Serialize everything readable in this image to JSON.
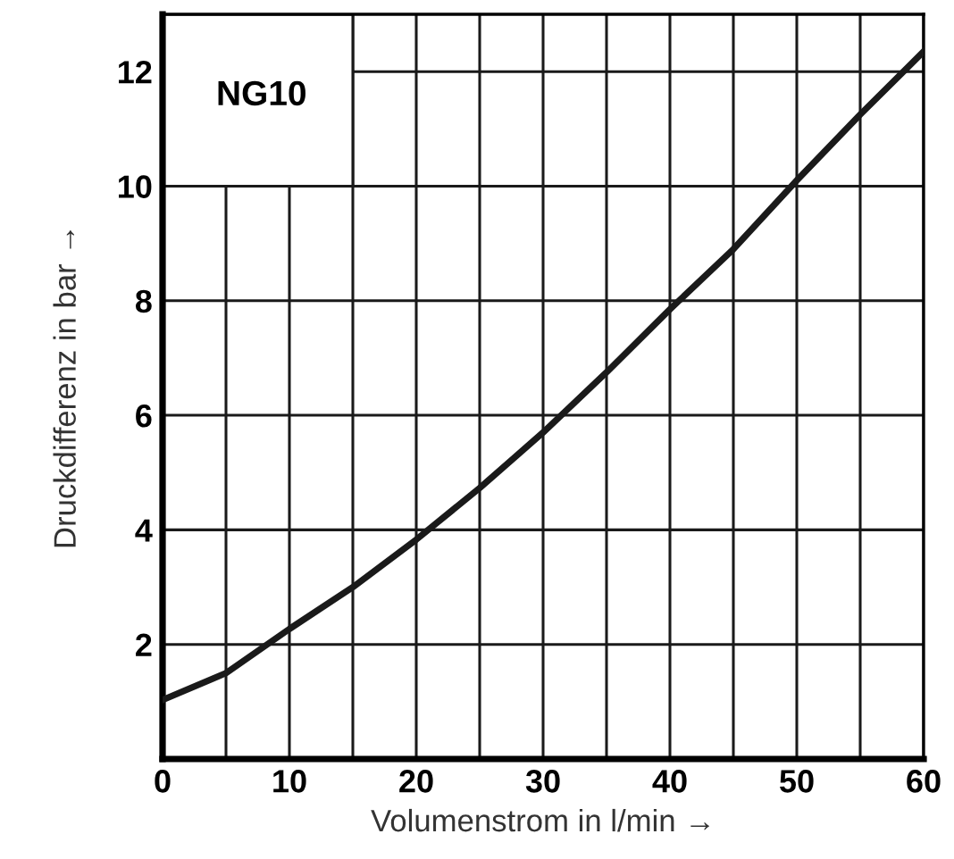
{
  "chart_data": {
    "type": "line",
    "xlabel": "Volumenstrom in l/min →",
    "ylabel": "Druckdifferenz in bar →",
    "annotations": [
      "NG10"
    ],
    "x": [
      0,
      5,
      10,
      15,
      20,
      25,
      30,
      35,
      40,
      45,
      50,
      55,
      60
    ],
    "series": [
      {
        "color": "#1a1a1a",
        "values": [
          1.03,
          1.5,
          2.27,
          3.0,
          3.83,
          4.73,
          5.7,
          6.75,
          7.85,
          8.9,
          10.1,
          11.25,
          12.35
        ]
      }
    ],
    "xlim": [
      0,
      60
    ],
    "ylim": [
      0,
      13
    ],
    "xticks": [
      0,
      {
        "value": 5,
        "label": null
      },
      10,
      {
        "value": 15,
        "label": null
      },
      20,
      {
        "value": 25,
        "label": null
      },
      30,
      {
        "value": 35,
        "label": null
      },
      40,
      {
        "value": 45,
        "label": null
      },
      50,
      {
        "value": 55,
        "label": null
      },
      60
    ],
    "yticks": [
      {
        "value": 0,
        "label": null
      },
      2,
      4,
      6,
      8,
      10,
      12
    ],
    "grid": true,
    "marker": "none",
    "line_style": "solid",
    "legend": false
  }
}
